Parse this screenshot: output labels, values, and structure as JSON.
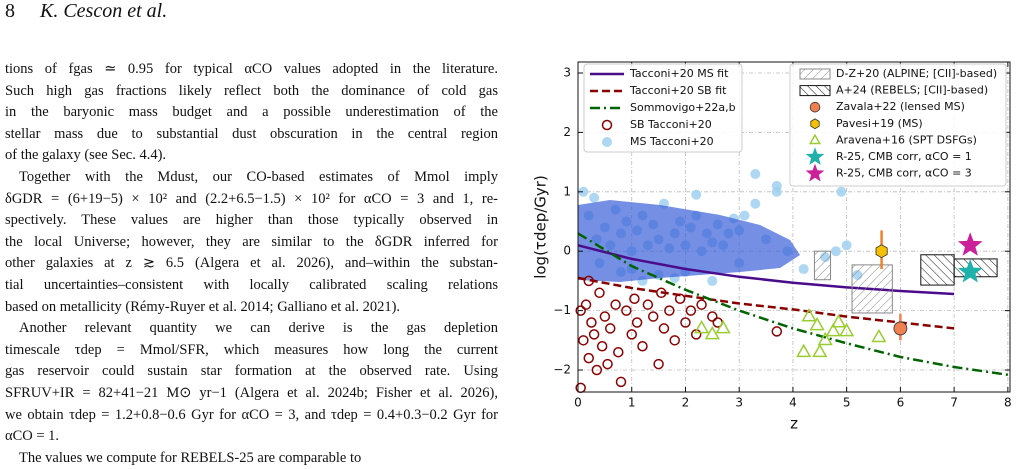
{
  "header": {
    "page": "8",
    "authors": "K. Cescon et al."
  },
  "paragraphs": [
    [
      "tions of fgas ≃ 0.95 for typical αCO values adopted in the literature.",
      "Such high gas fractions likely reflect both the dominance of cold gas",
      "in the baryonic mass budget and a possible underestimation of the",
      "stellar mass due to substantial dust obscuration in the central region",
      "of the galaxy (see Sec. 4.4)."
    ],
    [
      "Together with the Mdust, our CO-based estimates of Mmol imply",
      "δGDR = (6+19−5) × 10² and (2.2+6.5−1.5) × 10² for αCO = 3 and 1, re-",
      "spectively. These values are higher than those typically observed in",
      "the local Universe; however, they are similar to the δGDR inferred for",
      "other galaxies at z ≳ 6.5 (Algera et al. 2026), and–within the substan-",
      "tial uncertainties–consistent with locally calibrated scaling relations",
      "based on metallicity (Rémy-Ruyer et al. 2014; Galliano et al. 2021)."
    ],
    [
      "Another relevant quantity we can derive is the gas depletion",
      "timescale τdep = Mmol/SFR, which measures how long the current",
      "gas reservoir could sustain star formation at the observed rate. Using",
      "SFRUV+IR = 82+41−21 M⊙ yr−1 (Algera et al. 2024b; Fisher et al. 2026),",
      "we obtain τdep = 1.2+0.8−0.6 Gyr for αCO = 3, and τdep = 0.4+0.3−0.2 Gyr for",
      "αCO = 1."
    ],
    [
      "The values we compute for REBELS-25 are comparable to"
    ]
  ],
  "chart_data": {
    "type": "scatter",
    "xlabel": "z",
    "ylabel": "log(τdep/Gyr)",
    "xlim": [
      0,
      8.04
    ],
    "ylim": [
      -2.37,
      3.185
    ],
    "xticks": [
      0,
      1,
      2,
      3,
      4,
      5,
      6,
      7,
      8
    ],
    "yticks": [
      {
        "value": -2,
        "label": "−2"
      },
      {
        "value": -1,
        "label": "−1"
      },
      0,
      1,
      2,
      3
    ],
    "grid": true,
    "lines": [
      {
        "name": "Tacconi+20 MS fit",
        "color": "#4b0c8c",
        "style": "solid",
        "x": [
          0,
          1,
          2,
          3,
          4,
          5,
          6,
          7
        ],
        "values": [
          0.1,
          -0.13,
          -0.3,
          -0.43,
          -0.53,
          -0.61,
          -0.67,
          -0.72
        ]
      },
      {
        "name": "Tacconi+20 SB fit",
        "color": "#8b0000",
        "style": "dashed",
        "x": [
          0,
          1,
          2,
          3,
          4,
          5,
          6,
          7
        ],
        "values": [
          -0.45,
          -0.62,
          -0.75,
          -0.88,
          -0.98,
          -1.1,
          -1.2,
          -1.3
        ]
      },
      {
        "name": "Sommovigo+22a,b",
        "color": "#006400",
        "style": "dashdot",
        "x": [
          0,
          1,
          2,
          3,
          4,
          5,
          6,
          7,
          8
        ],
        "values": [
          0.3,
          -0.25,
          -0.65,
          -1.0,
          -1.3,
          -1.55,
          -1.78,
          -1.95,
          -2.08
        ]
      }
    ],
    "boxes": [
      {
        "name": "D-Z+20 (ALPINE; [CII]-based)",
        "color": "#888888",
        "x0": [
          4.4,
          5.1
        ],
        "x1": [
          4.7,
          5.85
        ],
        "y0": [
          -0.48,
          -1.04
        ],
        "y1": [
          0.0,
          -0.23
        ]
      },
      {
        "name": "A+24 (REBELS; [CII]-based)",
        "color": "#111111",
        "x0": [
          6.38,
          7.0
        ],
        "x1": [
          7.0,
          7.8
        ],
        "y0": [
          -0.57,
          -0.43
        ],
        "y1": [
          -0.06,
          -0.13
        ]
      }
    ],
    "series": [
      {
        "name": "SB Tacconi+20",
        "color": "#8b0000",
        "marker": "open-circle",
        "x": [
          0.05,
          0.1,
          0.15,
          0.2,
          0.25,
          0.3,
          0.35,
          0.4,
          0.45,
          0.5,
          0.55,
          0.6,
          0.7,
          0.75,
          0.8,
          0.9,
          1.0,
          1.05,
          1.1,
          1.2,
          1.3,
          1.4,
          1.5,
          1.55,
          1.6,
          1.7,
          1.8,
          1.9,
          2.0,
          2.1,
          2.2,
          2.3,
          2.5,
          2.6,
          0.05,
          0.2,
          3.7
        ],
        "values": [
          -1.0,
          -1.5,
          -0.9,
          -1.8,
          -1.2,
          -1.4,
          -2.0,
          -0.7,
          -1.6,
          -1.1,
          -1.9,
          -1.3,
          -0.9,
          -1.7,
          -2.2,
          -1.0,
          -1.4,
          -0.8,
          -1.2,
          -1.6,
          -0.9,
          -1.1,
          -1.9,
          -0.7,
          -1.3,
          -1.0,
          -1.5,
          -0.8,
          -1.2,
          -1.0,
          -1.4,
          -0.9,
          -1.1,
          -1.2,
          -2.3,
          -0.5,
          -1.35
        ]
      },
      {
        "name": "MS Tacconi+20",
        "color": "#9fd0f0",
        "marker": "circle",
        "x": [
          0.1,
          0.2,
          0.3,
          0.35,
          0.5,
          0.6,
          0.7,
          0.8,
          0.9,
          1.0,
          1.1,
          1.2,
          1.3,
          1.4,
          1.5,
          1.6,
          1.7,
          1.8,
          1.9,
          2.0,
          2.1,
          2.2,
          2.3,
          2.4,
          2.5,
          2.6,
          2.7,
          2.8,
          2.9,
          3.0,
          3.1,
          3.3,
          3.5,
          3.7,
          3.9,
          4.2,
          4.6,
          4.8,
          5.0,
          5.2,
          1.0,
          1.5,
          2.0,
          2.5,
          3.0,
          0.4,
          0.8,
          1.2,
          1.8,
          2.2,
          3.3,
          3.7,
          4.9
        ],
        "values": [
          1.0,
          0.6,
          0.9,
          0.2,
          0.4,
          0.1,
          0.7,
          0.3,
          0.5,
          0.0,
          0.35,
          0.6,
          0.1,
          0.45,
          0.2,
          0.8,
          0.05,
          0.3,
          0.5,
          0.1,
          0.4,
          0.6,
          0.0,
          0.3,
          0.15,
          0.45,
          0.1,
          0.3,
          0.55,
          0.35,
          0.6,
          0.8,
          0.2,
          1.0,
          0.0,
          -0.3,
          -0.1,
          0.0,
          0.1,
          -0.4,
          -0.3,
          -0.4,
          -0.35,
          -0.5,
          -0.2,
          -0.2,
          -0.35,
          -0.5,
          -0.45,
          0.95,
          1.3,
          1.1,
          1.0
        ]
      },
      {
        "name": "Zavala+22 (lensed MS)",
        "color": "#f08050",
        "marker": "circle-edge",
        "errcolor": "#f08050",
        "x": [
          6.0
        ],
        "values": [
          -1.3
        ],
        "y_low": [
          -1.5
        ],
        "y_high": [
          -1.05
        ]
      },
      {
        "name": "Pavesi+19 (MS)",
        "color": "#f5c000",
        "marker": "hexagon",
        "errcolor": "#f08030",
        "x": [
          5.65
        ],
        "values": [
          0.0
        ],
        "y_low": [
          -0.3
        ],
        "y_high": [
          0.35
        ]
      },
      {
        "name": "Aravena+16 (SPT DSFGs)",
        "color": "#9acd32",
        "marker": "open-triangle",
        "x": [
          2.3,
          2.5,
          2.7,
          4.3,
          4.45,
          4.6,
          4.75,
          4.85,
          5.0,
          5.6,
          4.2,
          4.5
        ],
        "values": [
          -1.3,
          -1.4,
          -1.3,
          -1.1,
          -1.25,
          -1.5,
          -1.35,
          -1.2,
          -1.35,
          -1.45,
          -1.7,
          -1.7
        ]
      },
      {
        "name": "R-25, CMB corr, αCO = 1",
        "color": "#20b2aa",
        "marker": "star",
        "x": [
          7.3
        ],
        "values": [
          -0.35
        ]
      },
      {
        "name": "R-25, CMB corr, αCO = 3",
        "color": "#cc1f9a",
        "marker": "star",
        "x": [
          7.3
        ],
        "values": [
          0.1
        ]
      }
    ]
  }
}
